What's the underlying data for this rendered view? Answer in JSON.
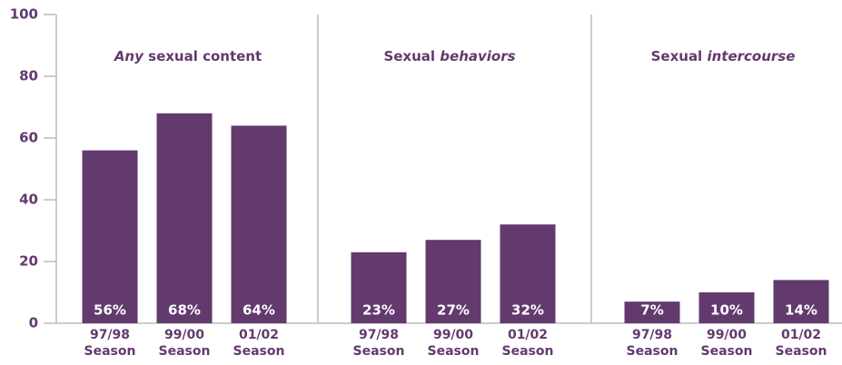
{
  "chart_data": [
    {
      "type": "bar",
      "title": [
        "Any",
        "sexual content"
      ],
      "title_italic": [
        true,
        false
      ],
      "categories": [
        "97/98 Season",
        "99/00 Season",
        "01/02 Season"
      ],
      "values": [
        56,
        68,
        64
      ],
      "value_labels": [
        "56%",
        "68%",
        "64%"
      ],
      "color": "#623a6e",
      "ylim": [
        0,
        100
      ],
      "yticks": [
        0,
        20,
        40,
        60,
        80,
        100
      ]
    },
    {
      "type": "bar",
      "title": [
        "Sexual",
        "behaviors"
      ],
      "title_italic": [
        false,
        true
      ],
      "categories": [
        "97/98 Season",
        "99/00 Season",
        "01/02 Season"
      ],
      "values": [
        23,
        27,
        32
      ],
      "value_labels": [
        "23%",
        "27%",
        "32%"
      ],
      "color": "#623a6e",
      "ylim": [
        0,
        100
      ]
    },
    {
      "type": "bar",
      "title": [
        "Sexual",
        "intercourse"
      ],
      "title_italic": [
        false,
        true
      ],
      "categories": [
        "97/98 Season",
        "99/00 Season",
        "01/02 Season"
      ],
      "values": [
        7,
        10,
        14
      ],
      "value_labels": [
        "7%",
        "10%",
        "14%"
      ],
      "color": "#623a6e",
      "ylim": [
        0,
        100
      ]
    }
  ]
}
